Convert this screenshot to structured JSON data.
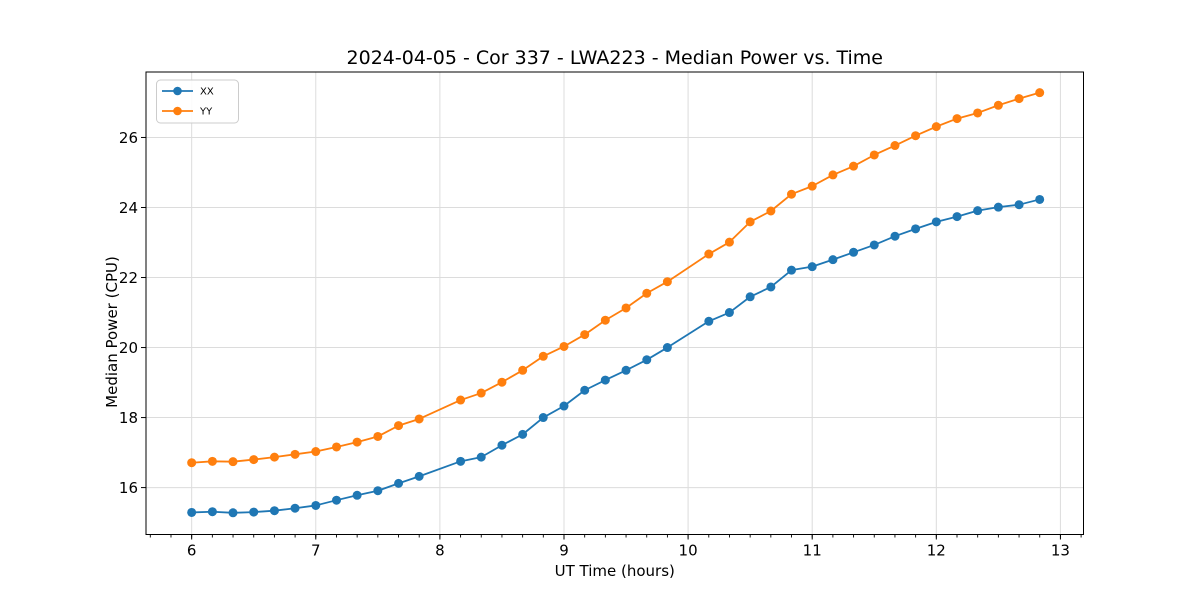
{
  "figure": {
    "background": "#ffffff"
  },
  "chart_data": {
    "type": "line",
    "title": "2024-04-05 - Cor 337 - LWA223 - Median Power vs. Time",
    "xlabel": "UT Time (hours)",
    "ylabel": "Median Power (CPU)",
    "xlim": [
      5.632,
      13.186
    ],
    "ylim": [
      14.66,
      27.87
    ],
    "xticks": [
      6,
      7,
      8,
      9,
      10,
      11,
      12,
      13
    ],
    "yticks": [
      16,
      18,
      20,
      22,
      24,
      26
    ],
    "x_minor_step": 0.166667,
    "grid": true,
    "grid_color": "#dcdcdc",
    "spine_color": "#000000",
    "legend": {
      "position": "upper-left",
      "entries": [
        "XX",
        "YY"
      ]
    },
    "x": [
      6.0,
      6.167,
      6.333,
      6.5,
      6.667,
      6.833,
      7.0,
      7.167,
      7.333,
      7.5,
      7.667,
      7.833,
      8.167,
      8.333,
      8.5,
      8.667,
      8.833,
      9.0,
      9.167,
      9.333,
      9.5,
      9.667,
      9.833,
      10.167,
      10.333,
      10.5,
      10.667,
      10.833,
      11.0,
      11.167,
      11.333,
      11.5,
      11.667,
      11.833,
      12.0,
      12.167,
      12.333,
      12.5,
      12.667,
      12.833
    ],
    "series": [
      {
        "name": "XX",
        "color": "#1f77b4",
        "values": [
          15.29,
          15.31,
          15.28,
          15.3,
          15.34,
          15.41,
          15.49,
          15.64,
          15.78,
          15.91,
          16.12,
          16.32,
          16.75,
          16.87,
          17.21,
          17.52,
          18.0,
          18.33,
          18.78,
          19.07,
          19.35,
          19.65,
          20.0,
          20.75,
          21.0,
          21.45,
          21.73,
          22.21,
          22.31,
          22.51,
          22.72,
          22.93,
          23.18,
          23.39,
          23.59,
          23.74,
          23.91,
          24.01,
          24.08,
          24.23
        ]
      },
      {
        "name": "YY",
        "color": "#ff7f0e",
        "values": [
          16.71,
          16.75,
          16.74,
          16.8,
          16.87,
          16.95,
          17.03,
          17.16,
          17.3,
          17.46,
          17.77,
          17.96,
          18.5,
          18.7,
          19.01,
          19.35,
          19.75,
          20.03,
          20.37,
          20.78,
          21.13,
          21.55,
          21.88,
          22.67,
          23.01,
          23.59,
          23.9,
          24.38,
          24.61,
          24.93,
          25.18,
          25.5,
          25.77,
          26.05,
          26.31,
          26.54,
          26.7,
          26.92,
          27.11,
          27.28
        ]
      }
    ]
  }
}
